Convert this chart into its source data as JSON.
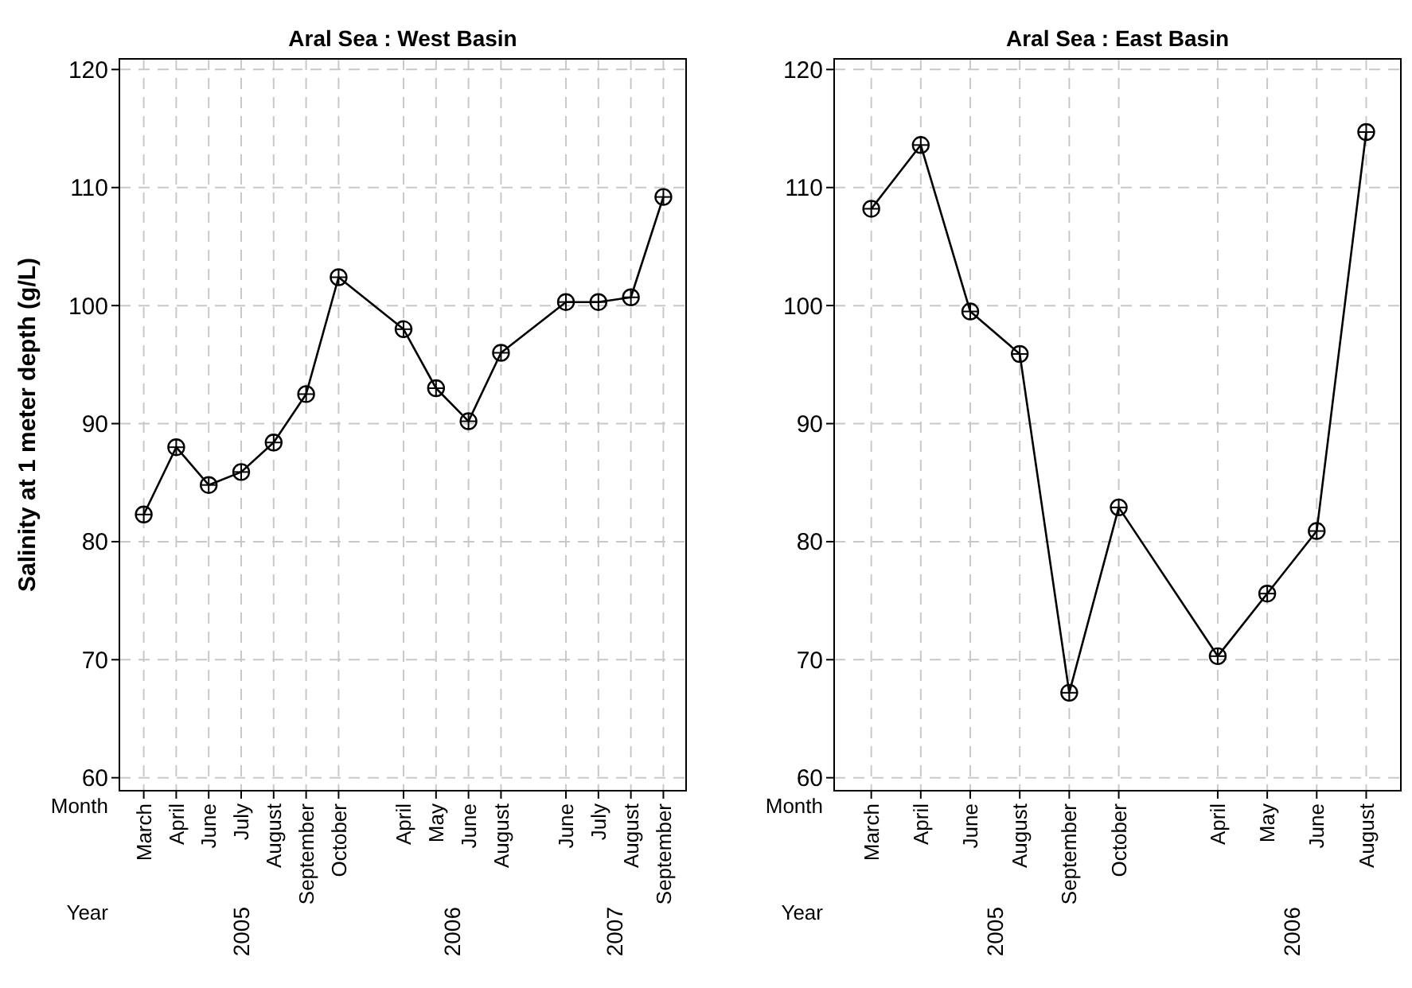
{
  "chart_data": [
    {
      "type": "line",
      "title": "Aral Sea : West Basin",
      "ylabel": "Salinity at 1 meter depth (g/L)",
      "categories": [
        "March",
        "April",
        "June",
        "July",
        "August",
        "September",
        "October",
        null,
        "April",
        "May",
        "June",
        "August",
        null,
        "June",
        "July",
        "August",
        "September"
      ],
      "ylim": [
        58.9,
        120.9
      ],
      "yticks": [
        60,
        70,
        80,
        90,
        100,
        110,
        120
      ],
      "grid": true,
      "marker": "circle",
      "line_style": "solid",
      "series": [
        {
          "color": "#000000",
          "values": [
            82.3,
            88.0,
            84.8,
            85.9,
            88.4,
            92.5,
            102.4,
            null,
            98.0,
            93.0,
            90.2,
            96.0,
            null,
            100.3,
            100.3,
            100.7,
            109.2
          ]
        }
      ],
      "annotations": [
        "Month",
        "Year",
        "2005",
        "2006",
        "2007"
      ]
    },
    {
      "type": "line",
      "title": "Aral Sea : East Basin",
      "categories": [
        "March",
        "April",
        "June",
        "August",
        "September",
        "October",
        null,
        "April",
        "May",
        "June",
        "August"
      ],
      "ylim": [
        58.9,
        120.9
      ],
      "yticks": [
        60,
        70,
        80,
        90,
        100,
        110,
        120
      ],
      "grid": true,
      "marker": "circle",
      "line_style": "solid",
      "series": [
        {
          "color": "#000000",
          "values": [
            108.2,
            113.6,
            99.5,
            95.9,
            67.2,
            82.9,
            null,
            70.3,
            75.6,
            80.9,
            114.7
          ]
        }
      ],
      "annotations": [
        "Month",
        "Year",
        "2005",
        "2006"
      ]
    }
  ]
}
